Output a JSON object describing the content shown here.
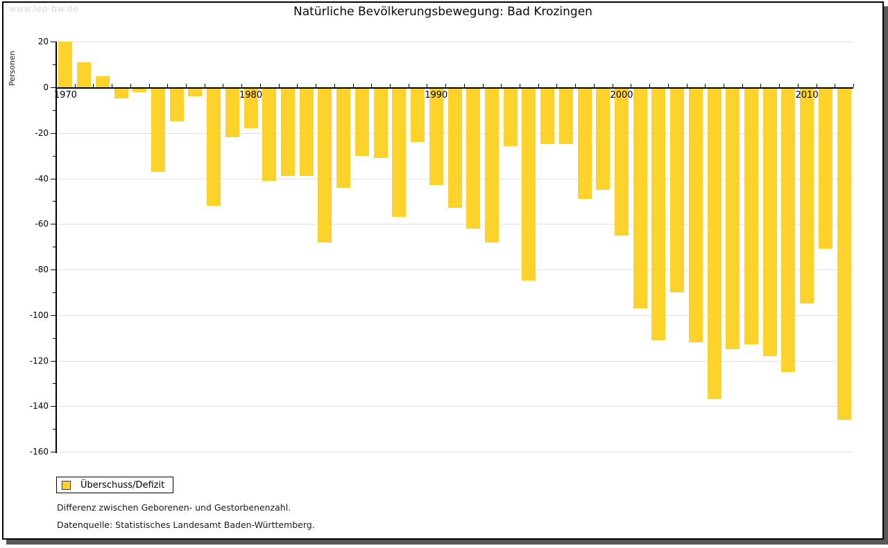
{
  "watermark": "www.leo-bw.de",
  "title": "Natürliche Bevölkerungsbewegung: Bad Krozingen",
  "y_axis_label": "Personen",
  "legend": {
    "label": "Überschuss/Defizit"
  },
  "footnotes": [
    "Differenz zwischen Geborenen- und Gestorbenenzahl.",
    "Datenquelle: Statistisches Landesamt Baden-Württemberg."
  ],
  "colors": {
    "bar": "#FCD22B",
    "grid": "#e0e0e0",
    "axis": "#000000",
    "shadow": "#595959",
    "watermark": "#d8d8d8"
  },
  "chart_data": {
    "type": "bar",
    "series_name": "Überschuss/Defizit",
    "x": [
      1970,
      1971,
      1972,
      1973,
      1974,
      1975,
      1976,
      1977,
      1978,
      1979,
      1980,
      1981,
      1982,
      1983,
      1984,
      1985,
      1986,
      1987,
      1988,
      1989,
      1990,
      1991,
      1992,
      1993,
      1994,
      1995,
      1996,
      1997,
      1998,
      1999,
      2000,
      2001,
      2002,
      2003,
      2004,
      2005,
      2006,
      2007,
      2008,
      2009,
      2010,
      2011,
      2012
    ],
    "values": [
      20,
      11,
      5,
      -5,
      -2,
      -37,
      -15,
      -4,
      -52,
      -22,
      -18,
      -41,
      -39,
      -39,
      -68,
      -44,
      -30,
      -31,
      -57,
      -24,
      -43,
      -53,
      -62,
      -68,
      -26,
      -85,
      -25,
      -25,
      -49,
      -45,
      -65,
      -97,
      -111,
      -90,
      -112,
      -137,
      -115,
      -113,
      -118,
      -125,
      -95,
      -71,
      -146
    ],
    "title": "Natürliche Bevölkerungsbewegung: Bad Krozingen",
    "xlabel": "",
    "ylabel": "Personen",
    "ylim": [
      -160,
      20
    ],
    "yticks": [
      20,
      0,
      -20,
      -40,
      -60,
      -80,
      -100,
      -120,
      -140,
      -160
    ],
    "ytick_minor_step": 10,
    "xtick_labels": [
      "1970",
      "1980",
      "1990",
      "2000",
      "2010"
    ],
    "grid": true,
    "legend_position": "bottom-left",
    "bar_color": "#FCD22B"
  }
}
